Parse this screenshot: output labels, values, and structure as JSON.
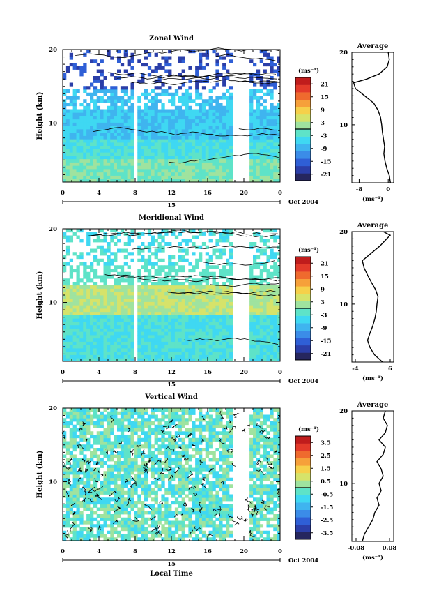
{
  "colors": {
    "scale": [
      "#26265e",
      "#2b3ea8",
      "#2f5fd6",
      "#3b8ce8",
      "#3fb4ef",
      "#3fd8f2",
      "#5ee3c8",
      "#9fe39f",
      "#d6e36a",
      "#f6d04a",
      "#f6a03a",
      "#ef6a2e",
      "#e33a2a",
      "#c01c1c"
    ],
    "contour": "#000000"
  },
  "chart_data": [
    {
      "type": "heatmap",
      "title": "Zonal Wind",
      "ylabel": "Height (km)",
      "ylim": [
        2,
        20
      ],
      "yticks": [
        "10",
        "20"
      ],
      "xlim": [
        0,
        24
      ],
      "xticks": [
        "0",
        "4",
        "8",
        "12",
        "16",
        "20",
        "0"
      ],
      "day_label": "15",
      "date_label": "Oct 2004",
      "colorbar": {
        "unit": "(ms⁻¹)",
        "ticks": [
          "21",
          "15",
          "9",
          "3",
          "-3",
          "-9",
          "-15",
          "-21"
        ],
        "range": [
          -24,
          24
        ]
      },
      "gaps_hours": [
        [
          7.8,
          8.2
        ],
        [
          18.8,
          20.6
        ]
      ],
      "profile": {
        "title": "Average",
        "xlabel": "(ms⁻¹)",
        "xlim": [
          -10,
          1.5
        ],
        "xticks": [
          "-8",
          "0"
        ],
        "height": [
          2,
          3,
          4,
          5,
          6,
          7,
          8,
          9,
          10,
          11,
          12,
          13,
          14,
          15,
          15.8,
          16.3,
          17,
          18,
          19,
          20
        ],
        "value": [
          0.6,
          0.3,
          -0.4,
          -0.9,
          -1.2,
          -1.0,
          -1.3,
          -1.6,
          -1.8,
          -2.1,
          -2.8,
          -4.0,
          -6.5,
          -9.0,
          -9.5,
          -6.0,
          -2.5,
          -0.3,
          0.3,
          0.0
        ]
      }
    },
    {
      "type": "heatmap",
      "title": "Meridional Wind",
      "ylabel": "Height (km)",
      "ylim": [
        2,
        20
      ],
      "yticks": [
        "10",
        "20"
      ],
      "xlim": [
        0,
        24
      ],
      "xticks": [
        "0",
        "4",
        "8",
        "12",
        "16",
        "20",
        "0"
      ],
      "day_label": "15",
      "date_label": "Oct 2004",
      "colorbar": {
        "unit": "(ms⁻¹)",
        "ticks": [
          "21",
          "15",
          "9",
          "3",
          "-3",
          "-9",
          "-15",
          "-21"
        ],
        "range": [
          -24,
          24
        ]
      },
      "gaps_hours": [
        [
          7.8,
          8.2
        ],
        [
          18.8,
          20.6
        ]
      ],
      "profile": {
        "title": "Average",
        "xlabel": "(ms⁻¹)",
        "xlim": [
          -5,
          7
        ],
        "xticks": [
          "-4",
          "6"
        ],
        "height": [
          2,
          3,
          4,
          5,
          6,
          7,
          8,
          9,
          10,
          11,
          12,
          13,
          14,
          15,
          16,
          17,
          18,
          19,
          19.5,
          20
        ],
        "value": [
          3.8,
          1.5,
          0.2,
          -0.5,
          0.2,
          1.0,
          1.6,
          2.0,
          2.2,
          2.5,
          1.8,
          0.6,
          -0.5,
          -1.5,
          -2.0,
          0.5,
          3.0,
          5.0,
          6.0,
          4.0
        ]
      }
    },
    {
      "type": "heatmap",
      "title": "Vertical Wind",
      "ylabel": "Height (km)",
      "xlabel": "Local Time",
      "ylim": [
        2,
        20
      ],
      "yticks": [
        "10",
        "20"
      ],
      "xlim": [
        0,
        24
      ],
      "xticks": [
        "0",
        "4",
        "8",
        "12",
        "16",
        "20",
        "0"
      ],
      "day_label": "15",
      "date_label": "Oct 2004",
      "colorbar": {
        "unit": "(ms⁻¹)",
        "ticks": [
          "3.5",
          "2.5",
          "1.5",
          "0.5",
          "-0.5",
          "-1.5",
          "-2.5",
          "-3.5"
        ],
        "range": [
          -4,
          4
        ]
      },
      "gaps_hours": [
        [
          18.8,
          20.6
        ]
      ],
      "profile": {
        "title": "Average",
        "xlabel": "(ms⁻¹)",
        "xlim": [
          -0.1,
          0.1
        ],
        "xticks": [
          "-0.08",
          "0.08"
        ],
        "height": [
          2,
          3,
          4,
          5,
          6,
          7,
          8,
          9,
          10,
          11,
          12,
          13,
          14,
          15,
          16,
          17,
          18,
          19,
          20
        ],
        "value": [
          -0.05,
          -0.04,
          -0.02,
          0.0,
          0.01,
          0.03,
          0.02,
          0.04,
          0.03,
          0.05,
          0.04,
          0.02,
          0.05,
          0.06,
          0.03,
          0.06,
          0.07,
          0.05,
          0.06
        ]
      }
    }
  ]
}
